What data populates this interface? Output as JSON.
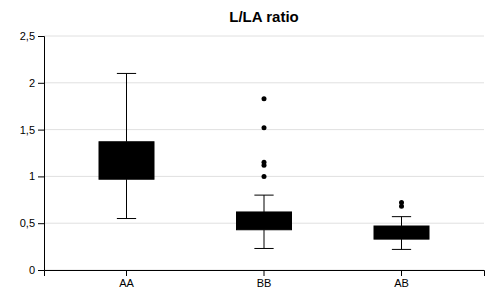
{
  "chart_data": {
    "type": "box",
    "title": "L/LA ratio",
    "categories": [
      "AA",
      "BB",
      "AB"
    ],
    "boxes": [
      {
        "q1": 0.97,
        "q3": 1.37,
        "whisker_low": 0.55,
        "whisker_high": 2.1,
        "outliers": []
      },
      {
        "q1": 0.43,
        "q3": 0.62,
        "whisker_low": 0.23,
        "whisker_high": 0.8,
        "outliers": [
          1.0,
          1.12,
          1.15,
          1.52,
          1.83
        ]
      },
      {
        "q1": 0.33,
        "q3": 0.47,
        "whisker_low": 0.22,
        "whisker_high": 0.57,
        "outliers": [
          0.68,
          0.72
        ]
      }
    ],
    "color": "#000000",
    "ylim": [
      0,
      2.5
    ],
    "yticks": [
      0,
      {
        "value": 0.5,
        "label": "0,5"
      },
      1,
      {
        "value": 1.5,
        "label": "1,5"
      },
      2,
      {
        "value": 2.5,
        "label": "2,5"
      }
    ],
    "grid": true
  }
}
